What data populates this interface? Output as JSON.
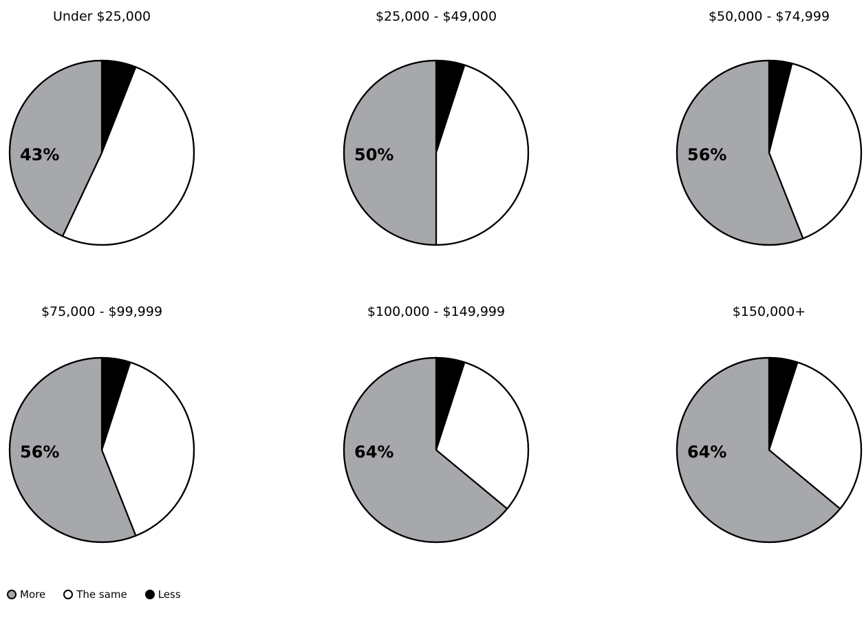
{
  "colors": {
    "more": "#a7a8ab",
    "same": "#ffffff",
    "less": "#000000",
    "stroke": "#000000"
  },
  "legend": [
    {
      "label": "More",
      "key": "more"
    },
    {
      "label": "The same",
      "key": "same"
    },
    {
      "label": "Less",
      "key": "less"
    }
  ],
  "chart_data": [
    {
      "type": "pie",
      "title": "Under $25,000",
      "label": "43%",
      "slices": [
        {
          "name": "Less",
          "value": 6
        },
        {
          "name": "The same",
          "value": 51
        },
        {
          "name": "More",
          "value": 43
        }
      ]
    },
    {
      "type": "pie",
      "title": "$25,000 - $49,000",
      "label": "50%",
      "slices": [
        {
          "name": "Less",
          "value": 5
        },
        {
          "name": "The same",
          "value": 45
        },
        {
          "name": "More",
          "value": 50
        }
      ]
    },
    {
      "type": "pie",
      "title": "$50,000 - $74,999",
      "label": "56%",
      "slices": [
        {
          "name": "Less",
          "value": 4
        },
        {
          "name": "The same",
          "value": 40
        },
        {
          "name": "More",
          "value": 56
        }
      ]
    },
    {
      "type": "pie",
      "title": "$75,000 - $99,999",
      "label": "56%",
      "slices": [
        {
          "name": "Less",
          "value": 5
        },
        {
          "name": "The same",
          "value": 39
        },
        {
          "name": "More",
          "value": 56
        }
      ]
    },
    {
      "type": "pie",
      "title": "$100,000 - $149,999",
      "label": "64%",
      "slices": [
        {
          "name": "Less",
          "value": 5
        },
        {
          "name": "The same",
          "value": 31
        },
        {
          "name": "More",
          "value": 64
        }
      ]
    },
    {
      "type": "pie",
      "title": "$150,000+",
      "label": "64%",
      "slices": [
        {
          "name": "Less",
          "value": 5
        },
        {
          "name": "The same",
          "value": 31
        },
        {
          "name": "More",
          "value": 64
        }
      ]
    }
  ]
}
